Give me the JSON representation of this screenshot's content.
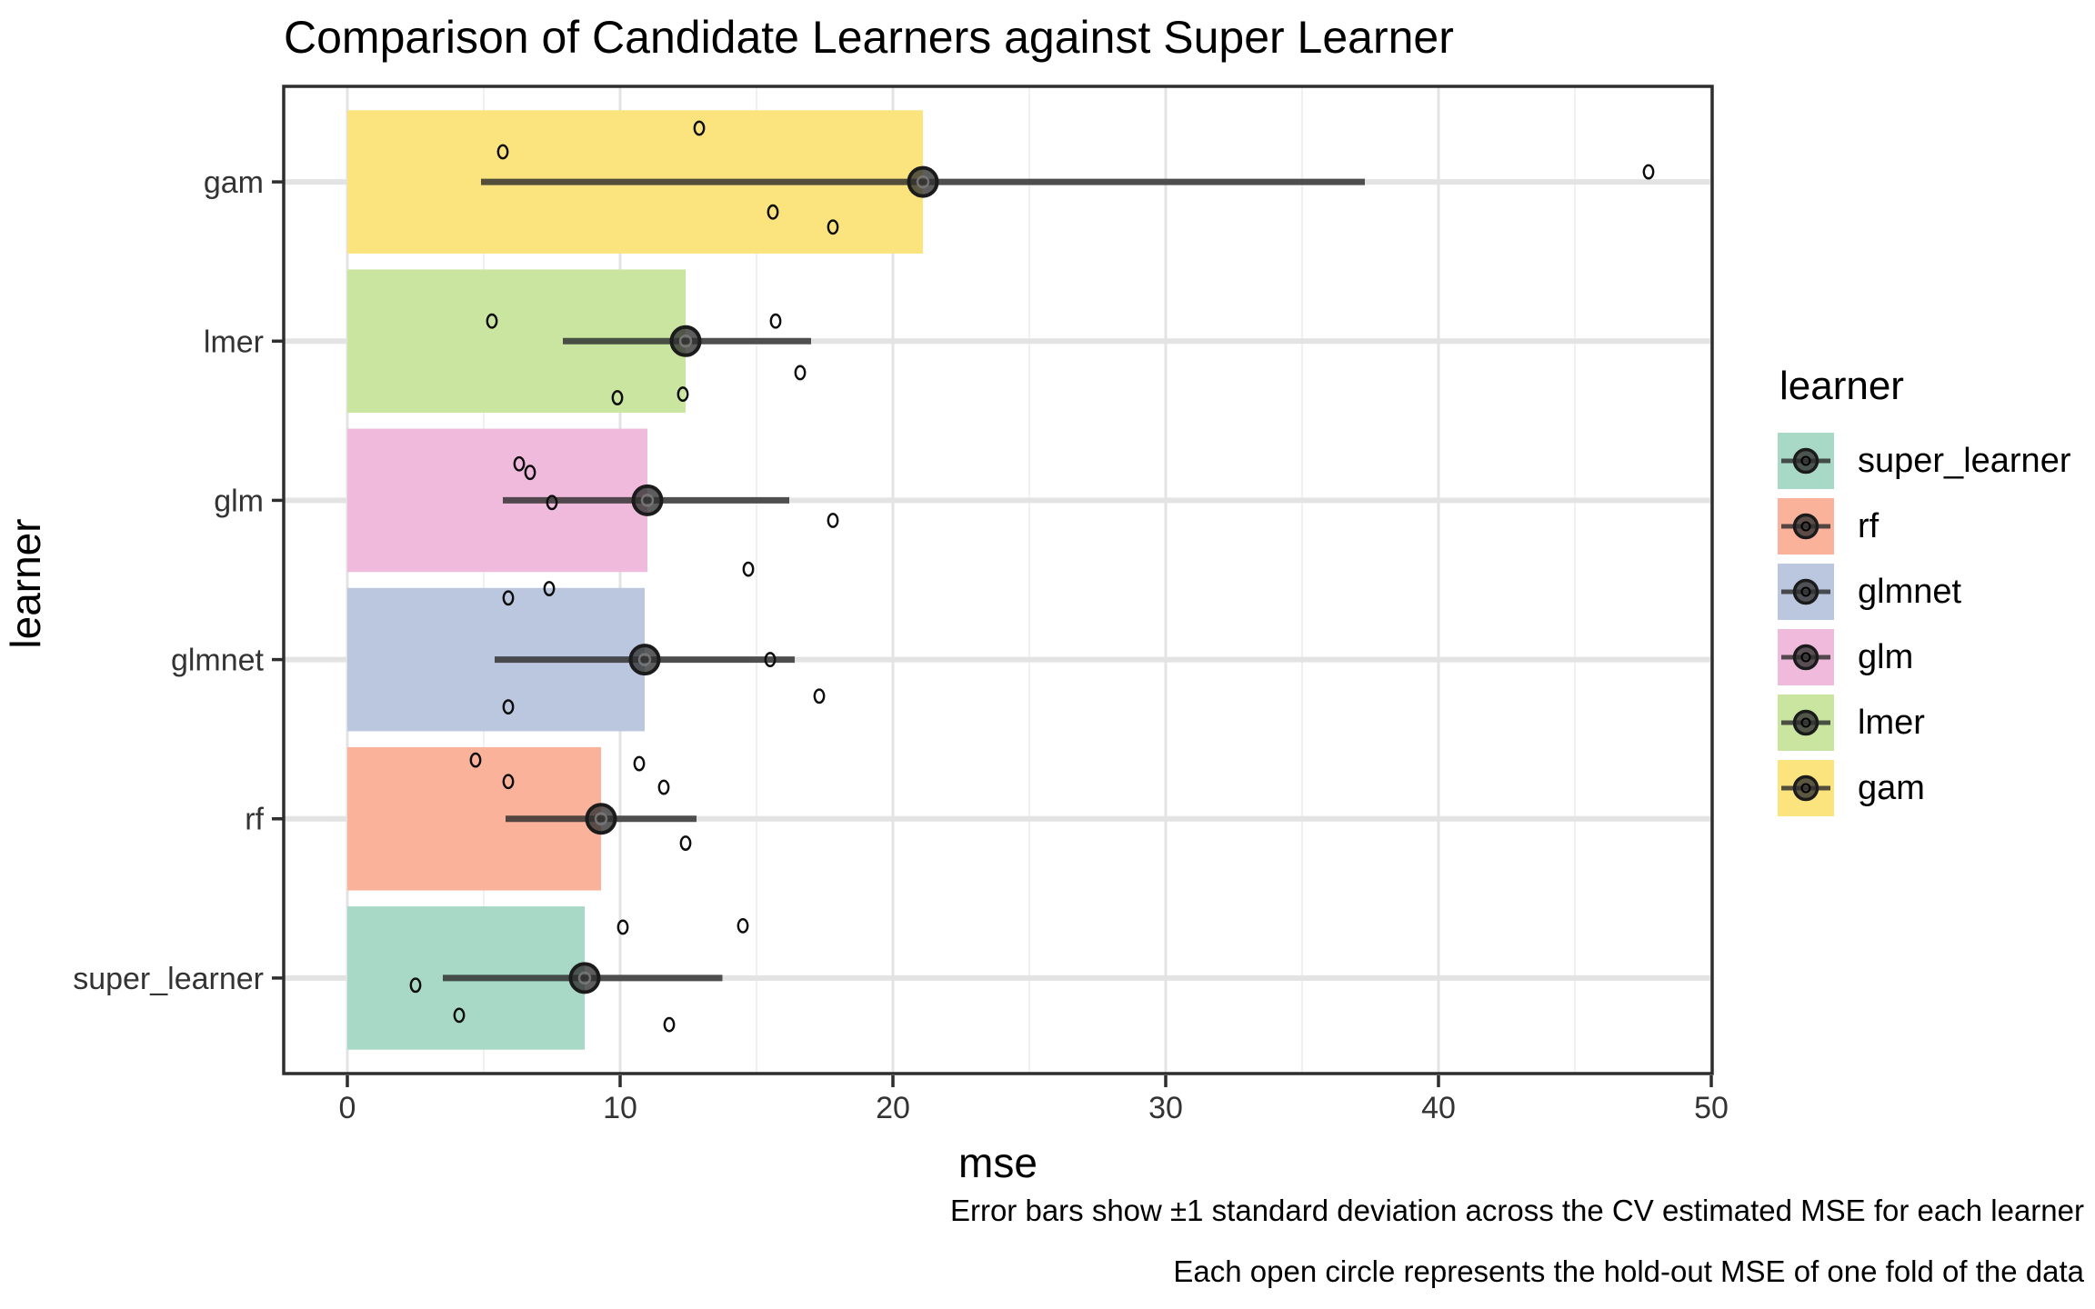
{
  "title": "Comparison of Candidate Learners against Super Learner",
  "axes": {
    "x_title": "mse",
    "y_title": "learner",
    "x_ticks": [
      0,
      10,
      20,
      30,
      40,
      50
    ],
    "x_minor_ticks": [
      5,
      15,
      25,
      35,
      45
    ],
    "y_categories_top_to_bottom": [
      "gam",
      "lmer",
      "glm",
      "glmnet",
      "rf",
      "super_learner"
    ]
  },
  "legend": {
    "title": "learner",
    "items": [
      {
        "label": "super_learner",
        "color": "#A8D9C6"
      },
      {
        "label": "rf",
        "color": "#FBB29B"
      },
      {
        "label": "glmnet",
        "color": "#BBC6DF"
      },
      {
        "label": "glm",
        "color": "#F0BADC"
      },
      {
        "label": "lmer",
        "color": "#C9E5A0"
      },
      {
        "label": "gam",
        "color": "#FBE37E"
      }
    ]
  },
  "caption": {
    "line1": "Error bars show ±1 standard deviation across the CV estimated MSE for each learner",
    "line2": "Each open circle represents the hold-out MSE of one fold of the data"
  },
  "chart_data": {
    "type": "bar",
    "orientation": "horizontal",
    "title": "Comparison of Candidate Learners against Super Learner",
    "xlabel": "mse",
    "ylabel": "learner",
    "xlim": [
      0,
      50
    ],
    "grid": true,
    "legend_position": "right",
    "categories_top_to_bottom": [
      "gam",
      "lmer",
      "glm",
      "glmnet",
      "rf",
      "super_learner"
    ],
    "series": [
      {
        "learner": "gam",
        "color": "#FBE37E",
        "mean_mse": 21.1,
        "sd_range": [
          4.9,
          37.3
        ],
        "fold_mse": [
          5.7,
          12.9,
          15.6,
          17.8,
          47.7
        ],
        "fold_dy": [
          -0.42,
          -0.75,
          0.42,
          0.63,
          -0.14
        ]
      },
      {
        "learner": "lmer",
        "color": "#C9E5A0",
        "mean_mse": 12.4,
        "sd_range": [
          7.9,
          17.0
        ],
        "fold_mse": [
          5.3,
          9.9,
          12.3,
          15.7,
          16.6
        ],
        "fold_dy": [
          -0.28,
          0.79,
          0.74,
          -0.28,
          0.44
        ]
      },
      {
        "learner": "glm",
        "color": "#F0BADC",
        "mean_mse": 11.0,
        "sd_range": [
          5.7,
          16.2
        ],
        "fold_mse": [
          6.3,
          6.7,
          7.5,
          14.7,
          17.8
        ],
        "fold_dy": [
          -0.51,
          -0.39,
          0.03,
          0.96,
          0.28
        ]
      },
      {
        "learner": "glmnet",
        "color": "#BBC6DF",
        "mean_mse": 10.9,
        "sd_range": [
          5.4,
          16.4
        ],
        "fold_mse": [
          5.9,
          7.4,
          5.9,
          15.5,
          17.3
        ],
        "fold_dy": [
          -0.86,
          -0.99,
          0.66,
          0.0,
          0.51
        ]
      },
      {
        "learner": "rf",
        "color": "#FBB29B",
        "mean_mse": 9.3,
        "sd_range": [
          5.8,
          12.8
        ],
        "fold_mse": [
          4.7,
          5.9,
          10.7,
          11.6,
          12.4
        ],
        "fold_dy": [
          -0.82,
          -0.52,
          -0.77,
          -0.44,
          0.34
        ]
      },
      {
        "learner": "super_learner",
        "color": "#A8D9C6",
        "mean_mse": 8.7,
        "sd_range": [
          3.5,
          13.75
        ],
        "fold_mse": [
          2.5,
          4.1,
          10.1,
          11.8,
          14.5
        ],
        "fold_dy": [
          0.1,
          0.52,
          -0.71,
          0.65,
          -0.73
        ]
      }
    ],
    "annotations": [
      "Error bars show ±1 standard deviation across the CV estimated MSE for each learner",
      "Each open circle represents the hold-out MSE of one fold of the data"
    ]
  }
}
